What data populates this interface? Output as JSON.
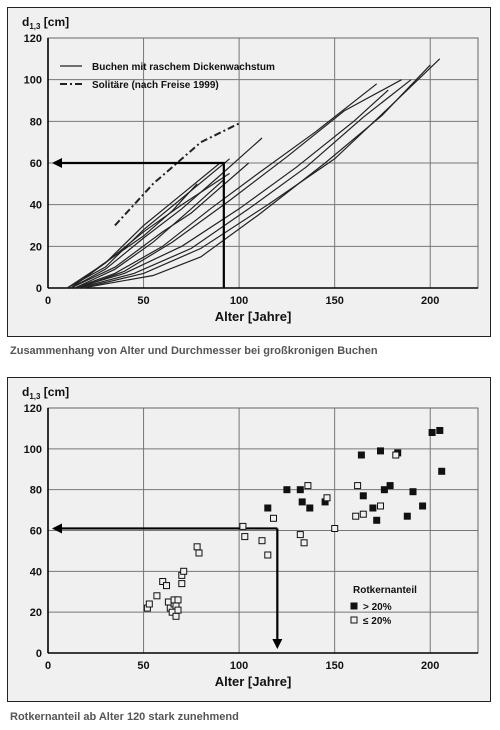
{
  "charts": [
    {
      "id": "chart1",
      "caption": "Zusammenhang von Alter und Durchmesser bei großkronigen Buchen",
      "chart_data": {
        "type": "line",
        "ylabel_main": "d",
        "ylabel_sub": "1,3",
        "ylabel_unit": "[cm]",
        "xlabel": "Alter [Jahre]",
        "xlim": [
          0,
          225
        ],
        "ylim": [
          0,
          120
        ],
        "xticks": [
          0,
          50,
          100,
          150,
          200
        ],
        "yticks": [
          0,
          20,
          40,
          60,
          80,
          100,
          120
        ],
        "grid": true,
        "legend_position": "top-left",
        "legend": [
          {
            "label": "Buchen mit raschem Dickenwachstum",
            "style": "solid"
          },
          {
            "label": "Solitäre (nach Freise 1999)",
            "style": "dash-dot"
          }
        ],
        "series": [
          {
            "style": "solid",
            "points": [
              [
                10,
                0
              ],
              [
                30,
                12
              ],
              [
                50,
                30
              ],
              [
                70,
                45
              ],
              [
                90,
                60
              ]
            ]
          },
          {
            "style": "solid",
            "points": [
              [
                10,
                0
              ],
              [
                30,
                10
              ],
              [
                50,
                28
              ],
              [
                70,
                43
              ],
              [
                95,
                62
              ]
            ]
          },
          {
            "style": "solid",
            "points": [
              [
                12,
                0
              ],
              [
                30,
                9
              ],
              [
                50,
                24
              ],
              [
                70,
                38
              ],
              [
                90,
                54
              ],
              [
                112,
                72
              ]
            ]
          },
          {
            "style": "solid",
            "points": [
              [
                12,
                0
              ],
              [
                35,
                10
              ],
              [
                60,
                27
              ],
              [
                75,
                36
              ],
              [
                85,
                44
              ],
              [
                105,
                60
              ]
            ]
          },
          {
            "style": "solid",
            "points": [
              [
                14,
                0
              ],
              [
                35,
                7
              ],
              [
                60,
                20
              ],
              [
                85,
                38
              ],
              [
                110,
                55
              ],
              [
                140,
                75
              ],
              [
                172,
                98
              ]
            ]
          },
          {
            "style": "solid",
            "points": [
              [
                14,
                0
              ],
              [
                40,
                7
              ],
              [
                70,
                20
              ],
              [
                100,
                38
              ],
              [
                130,
                58
              ],
              [
                160,
                80
              ],
              [
                178,
                95
              ]
            ]
          },
          {
            "style": "solid",
            "points": [
              [
                16,
                0
              ],
              [
                45,
                7
              ],
              [
                75,
                19
              ],
              [
                105,
                38
              ],
              [
                135,
                58
              ],
              [
                165,
                82
              ],
              [
                190,
                100
              ]
            ]
          },
          {
            "style": "solid",
            "points": [
              [
                18,
                0
              ],
              [
                50,
                7
              ],
              [
                80,
                19
              ],
              [
                115,
                40
              ],
              [
                150,
                62
              ],
              [
                180,
                88
              ],
              [
                205,
                110
              ]
            ]
          },
          {
            "style": "solid",
            "points": [
              [
                18,
                0
              ],
              [
                55,
                6
              ],
              [
                80,
                15
              ],
              [
                110,
                35
              ],
              [
                145,
                60
              ],
              [
                175,
                83
              ],
              [
                200,
                107
              ]
            ]
          },
          {
            "style": "solid",
            "points": [
              [
                16,
                0
              ],
              [
                40,
                8
              ],
              [
                65,
                22
              ],
              [
                95,
                42
              ],
              [
                125,
                63
              ],
              [
                155,
                85
              ],
              [
                185,
                100
              ]
            ]
          },
          {
            "style": "solid",
            "points": [
              [
                14,
                0
              ],
              [
                35,
                9
              ],
              [
                55,
                22
              ],
              [
                75,
                38
              ],
              [
                92,
                52
              ]
            ]
          },
          {
            "style": "solid",
            "points": [
              [
                12,
                0
              ],
              [
                30,
                12
              ],
              [
                50,
                27
              ],
              [
                70,
                40
              ],
              [
                95,
                55
              ]
            ]
          },
          {
            "style": "solid",
            "points": [
              [
                12,
                0
              ],
              [
                28,
                11
              ],
              [
                50,
                25
              ],
              [
                65,
                37
              ],
              [
                78,
                50
              ]
            ]
          },
          {
            "style": "dash-dot",
            "points": [
              [
                35,
                30
              ],
              [
                45,
                40
              ],
              [
                55,
                50
              ],
              [
                65,
                58
              ],
              [
                80,
                70
              ],
              [
                100,
                79
              ]
            ]
          }
        ],
        "annotation_arrow": {
          "from_x": 92,
          "from_y": 0,
          "corner_y": 60,
          "to_x": 0,
          "direction": "left"
        }
      }
    },
    {
      "id": "chart2",
      "caption": "Rotkernanteil ab Alter 120 stark zunehmend",
      "chart_data": {
        "type": "scatter",
        "ylabel_main": "d",
        "ylabel_sub": "1,3",
        "ylabel_unit": "[cm]",
        "xlabel": "Alter [Jahre]",
        "xlim": [
          0,
          225
        ],
        "ylim": [
          0,
          120
        ],
        "xticks": [
          0,
          50,
          100,
          150,
          200
        ],
        "yticks": [
          0,
          20,
          40,
          60,
          80,
          100,
          120
        ],
        "grid": true,
        "legend_position": "bottom-right",
        "legend_title": "Rotkernanteil",
        "series": [
          {
            "name": "> 20%",
            "marker": "filled-square",
            "points": [
              [
                115,
                71
              ],
              [
                125,
                80
              ],
              [
                132,
                80
              ],
              [
                133,
                74
              ],
              [
                137,
                71
              ],
              [
                145,
                74
              ],
              [
                164,
                97
              ],
              [
                165,
                77
              ],
              [
                170,
                71
              ],
              [
                172,
                65
              ],
              [
                174,
                99
              ],
              [
                176,
                80
              ],
              [
                179,
                82
              ],
              [
                183,
                98
              ],
              [
                188,
                67
              ],
              [
                191,
                79
              ],
              [
                196,
                72
              ],
              [
                201,
                108
              ],
              [
                205,
                109
              ],
              [
                206,
                89
              ]
            ]
          },
          {
            "name": "≤ 20%",
            "marker": "open-square",
            "points": [
              [
                52,
                22
              ],
              [
                53,
                24
              ],
              [
                57,
                28
              ],
              [
                60,
                35
              ],
              [
                62,
                33
              ],
              [
                63,
                25
              ],
              [
                64,
                22
              ],
              [
                65,
                20
              ],
              [
                66,
                24
              ],
              [
                66,
                26
              ],
              [
                67,
                23
              ],
              [
                67,
                18
              ],
              [
                68,
                21
              ],
              [
                68,
                26
              ],
              [
                70,
                34
              ],
              [
                70,
                38
              ],
              [
                71,
                40
              ],
              [
                78,
                52
              ],
              [
                79,
                49
              ],
              [
                102,
                62
              ],
              [
                103,
                57
              ],
              [
                112,
                55
              ],
              [
                115,
                48
              ],
              [
                118,
                66
              ],
              [
                132,
                58
              ],
              [
                134,
                54
              ],
              [
                136,
                82
              ],
              [
                146,
                76
              ],
              [
                150,
                61
              ],
              [
                161,
                67
              ],
              [
                162,
                82
              ],
              [
                165,
                68
              ],
              [
                174,
                72
              ],
              [
                182,
                97
              ]
            ]
          }
        ],
        "annotation_arrow": {
          "from_x": 0,
          "y": 61,
          "corner_x": 120,
          "to_y": 0,
          "direction": "down"
        }
      }
    }
  ]
}
